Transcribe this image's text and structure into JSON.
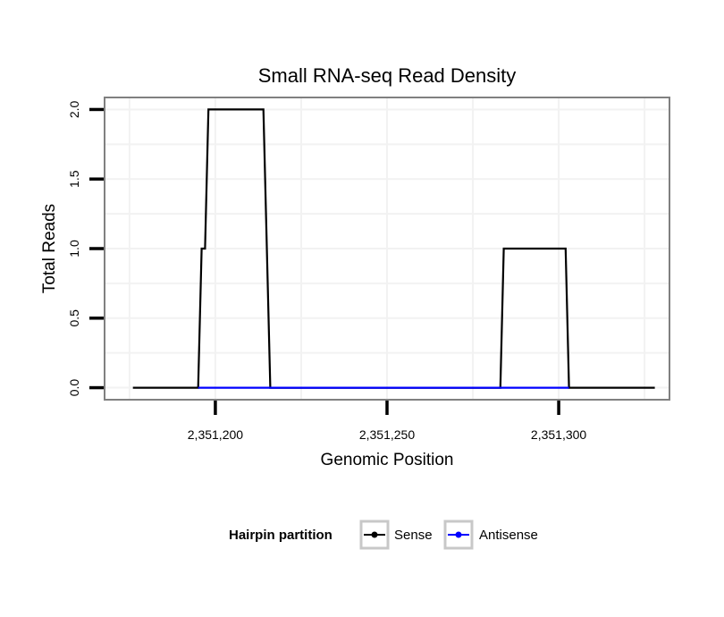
{
  "chart_data": {
    "type": "line",
    "title": "Small RNA-seq Read Density",
    "xlabel": "Genomic Position",
    "ylabel": "Total Reads",
    "xlim": [
      2351168,
      2351332
    ],
    "ylim": [
      -0.08,
      2.08
    ],
    "x_ticks": [
      {
        "value": 2351200,
        "label": "2,351,200"
      },
      {
        "value": 2351250,
        "label": "2,351,250"
      },
      {
        "value": 2351300,
        "label": "2,351,300"
      }
    ],
    "y_ticks": [
      {
        "value": 0.0,
        "label": "0.0"
      },
      {
        "value": 0.5,
        "label": "0.5"
      },
      {
        "value": 1.0,
        "label": "1.0"
      },
      {
        "value": 1.5,
        "label": "1.5"
      },
      {
        "value": 2.0,
        "label": "2.0"
      }
    ],
    "grid": true,
    "legend": {
      "title": "Hairpin partition",
      "position": "bottom"
    },
    "series": [
      {
        "name": "Sense",
        "color": "#000000",
        "x": [
          2351176,
          2351195,
          2351196,
          2351197,
          2351198,
          2351214,
          2351216,
          2351283,
          2351284,
          2351302,
          2351303,
          2351328
        ],
        "y": [
          0,
          0,
          1,
          1,
          2,
          2,
          0,
          0,
          1,
          1,
          0,
          0
        ]
      },
      {
        "name": "Antisense",
        "color": "#0000ff",
        "x": [
          2351195,
          2351216,
          2351283,
          2351303
        ],
        "y": [
          0,
          0,
          0,
          0
        ]
      }
    ]
  }
}
